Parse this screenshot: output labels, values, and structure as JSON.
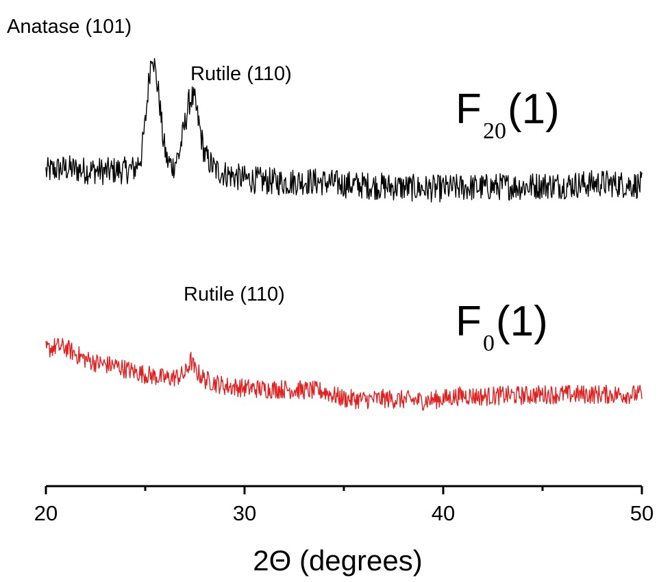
{
  "chart_data": {
    "type": "line",
    "xlabel": "2Θ (degrees)",
    "ylabel": "",
    "xlim": [
      20,
      50
    ],
    "x_ticks": [
      20,
      30,
      40,
      50
    ],
    "x_minor_ticks": [
      25,
      35,
      45
    ],
    "grid": false,
    "y_axis_visible": false,
    "series": [
      {
        "name": "F20(1)",
        "label_main": "F",
        "label_sub": "20",
        "label_suffix": "(1)",
        "color": "#000000",
        "points": [
          [
            20.0,
            290
          ],
          [
            20.5,
            292
          ],
          [
            21.0,
            293
          ],
          [
            21.5,
            292
          ],
          [
            22.0,
            291
          ],
          [
            22.5,
            291
          ],
          [
            23.0,
            290
          ],
          [
            23.5,
            291
          ],
          [
            24.0,
            291
          ],
          [
            24.5,
            293
          ],
          [
            24.8,
            305
          ],
          [
            25.0,
            335
          ],
          [
            25.2,
            380
          ],
          [
            25.35,
            405
          ],
          [
            25.5,
            385
          ],
          [
            25.7,
            360
          ],
          [
            25.9,
            320
          ],
          [
            26.1,
            300
          ],
          [
            26.4,
            295
          ],
          [
            26.7,
            306
          ],
          [
            27.0,
            335
          ],
          [
            27.2,
            355
          ],
          [
            27.35,
            360
          ],
          [
            27.5,
            355
          ],
          [
            27.7,
            335
          ],
          [
            28.0,
            305
          ],
          [
            28.5,
            292
          ],
          [
            29.0,
            288
          ],
          [
            30.0,
            283
          ],
          [
            31.0,
            281
          ],
          [
            32.0,
            280
          ],
          [
            33.0,
            281
          ],
          [
            34.0,
            280
          ],
          [
            35.0,
            278
          ],
          [
            36.0,
            277
          ],
          [
            37.0,
            276
          ],
          [
            38.0,
            275
          ],
          [
            39.0,
            274
          ],
          [
            40.0,
            274
          ],
          [
            41.0,
            275
          ],
          [
            42.0,
            275
          ],
          [
            43.0,
            276
          ],
          [
            44.0,
            276
          ],
          [
            45.0,
            277
          ],
          [
            46.0,
            277
          ],
          [
            47.0,
            278
          ],
          [
            48.0,
            279
          ],
          [
            49.0,
            278
          ],
          [
            50.0,
            277
          ]
        ]
      },
      {
        "name": "F0(1)",
        "label_main": "F",
        "label_sub": "0",
        "label_suffix": "(1)",
        "color": "#e32020",
        "points": [
          [
            20.0,
            122
          ],
          [
            20.5,
            125
          ],
          [
            21.0,
            124
          ],
          [
            21.5,
            118
          ],
          [
            22.0,
            113
          ],
          [
            22.5,
            110
          ],
          [
            23.0,
            108
          ],
          [
            23.5,
            107
          ],
          [
            24.0,
            104
          ],
          [
            24.5,
            101
          ],
          [
            25.0,
            99
          ],
          [
            25.5,
            97
          ],
          [
            26.0,
            95
          ],
          [
            26.5,
            96
          ],
          [
            27.0,
            99
          ],
          [
            27.3,
            112
          ],
          [
            27.5,
            103
          ],
          [
            28.0,
            94
          ],
          [
            28.5,
            91
          ],
          [
            29.0,
            88
          ],
          [
            30.0,
            86
          ],
          [
            31.0,
            85
          ],
          [
            32.0,
            85
          ],
          [
            33.0,
            84
          ],
          [
            34.0,
            83
          ],
          [
            34.5,
            79
          ],
          [
            35.0,
            76
          ],
          [
            36.0,
            75
          ],
          [
            37.0,
            76
          ],
          [
            38.0,
            75
          ],
          [
            39.0,
            74
          ],
          [
            40.0,
            76
          ],
          [
            41.0,
            79
          ],
          [
            42.0,
            78
          ],
          [
            43.0,
            79
          ],
          [
            44.0,
            79
          ],
          [
            45.0,
            80
          ],
          [
            46.0,
            80
          ],
          [
            47.0,
            80
          ],
          [
            48.0,
            80
          ],
          [
            49.0,
            80
          ],
          [
            50.0,
            80
          ]
        ]
      }
    ],
    "annotations": [
      {
        "text": "Anatase (101)",
        "x": 25.3,
        "y": 420
      },
      {
        "text": "Rutile (110)",
        "x": 27.3,
        "y": 381
      },
      {
        "text": "Rutile (110)",
        "x": 27.2,
        "y": 160
      }
    ]
  }
}
